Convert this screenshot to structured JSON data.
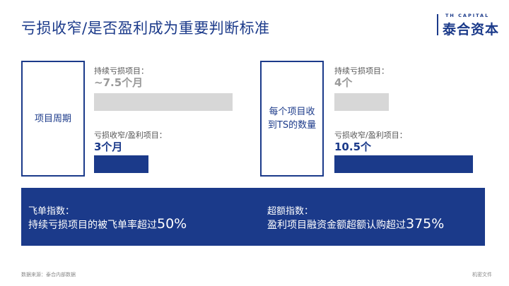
{
  "title": "亏损收窄/是否盈利成为重要判断标准",
  "brand": {
    "en": "TH CAPITAL",
    "cn": "泰合资本"
  },
  "left_panel": {
    "label": "项目周期",
    "sustained_caption": "持续亏损项目：",
    "sustained_value": "~7.5个月",
    "narrowed_caption": "亏损收窄/盈利项目：",
    "narrowed_value": "3个月"
  },
  "right_panel": {
    "label_line1": "每个项目收",
    "label_line2": "到TS的数量",
    "sustained_caption": "持续亏损项目：",
    "sustained_value": "4个",
    "narrowed_caption": "亏损收窄/盈利项目：",
    "narrowed_value": "10.5个"
  },
  "band": {
    "left_caption": "飞单指数：",
    "left_text": "持续亏损项目的被飞单率超过",
    "left_highlight": "50%",
    "right_caption": "超额指数：",
    "right_text": "盈利项目融资金额超额认购超过",
    "right_highlight": "375%"
  },
  "footer": {
    "source": "数据来源：泰合内部数据",
    "confidential": "机密文件"
  },
  "colors": {
    "navy": "#1b3a8a",
    "grey_bar": "#d7d7d7",
    "grey_text": "#9a9a9a"
  }
}
